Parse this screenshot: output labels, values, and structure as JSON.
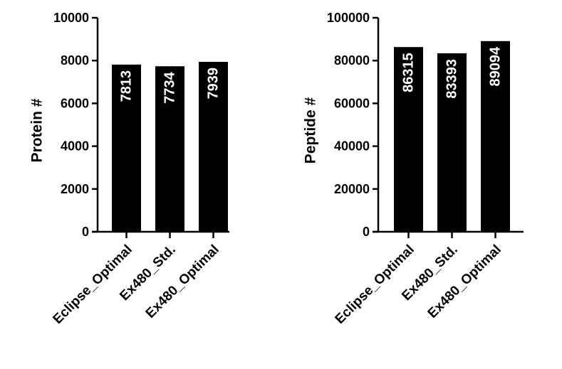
{
  "chart_data": [
    {
      "type": "bar",
      "categories": [
        "Eclipse_Optimal",
        "Ex480_Std.",
        "Ex480_Optimal"
      ],
      "values": [
        7813,
        7734,
        7939
      ],
      "data_labels": [
        "7813",
        "7734",
        "7939"
      ],
      "ylabel": "Protein #",
      "xlabel": "",
      "ylim": [
        0,
        10000
      ],
      "yticks": [
        0,
        2000,
        4000,
        6000,
        8000,
        10000
      ],
      "ytick_labels": [
        "0",
        "2000",
        "4000",
        "6000",
        "8000",
        "10000"
      ],
      "grid": false,
      "bar_color": "#000000",
      "label_color": "#ffffff"
    },
    {
      "type": "bar",
      "categories": [
        "Eclipse_Optimal",
        "Ex480_Std.",
        "Ex480_Optimal"
      ],
      "values": [
        86315,
        83393,
        89094
      ],
      "data_labels": [
        "86315",
        "83393",
        "89094"
      ],
      "ylabel": "Peptide #",
      "xlabel": "",
      "ylim": [
        0,
        100000
      ],
      "yticks": [
        0,
        20000,
        40000,
        60000,
        80000,
        100000
      ],
      "ytick_labels": [
        "0",
        "20000",
        "40000",
        "60000",
        "80000",
        "100000"
      ],
      "grid": false,
      "bar_color": "#000000",
      "label_color": "#ffffff"
    }
  ]
}
